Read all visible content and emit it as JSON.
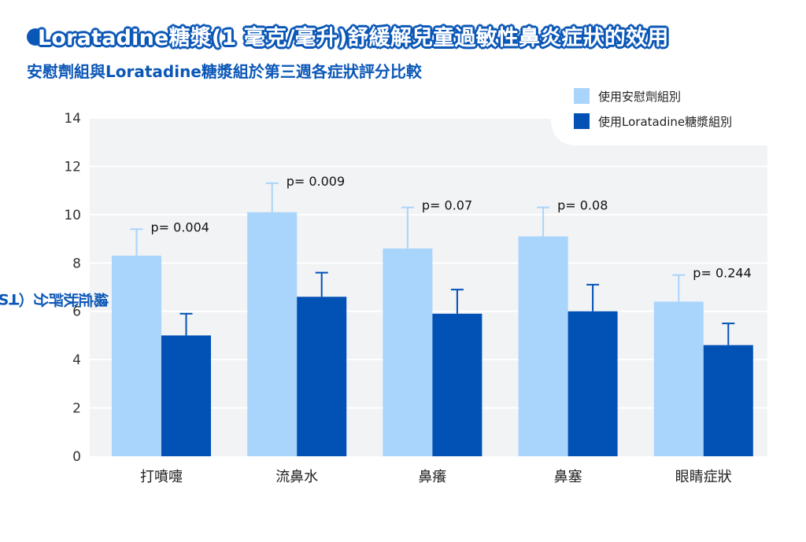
{
  "header": {
    "title": "Loratadine糖漿(1 毫克/毫升)舒緩解兒童過敏性鼻炎症狀的效用",
    "subtitle": "安慰劑組與Loratadine糖漿組於第三週各症狀評分比較"
  },
  "colors": {
    "placebo": "#a9d4fb",
    "loratadine": "#0251b5",
    "accent": "#0b57b7",
    "plot_bg": "#f1f3f5"
  },
  "chart_data": {
    "type": "bar",
    "title": "Loratadine糖漿(1 毫克/毫升)舒緩解兒童過敏性鼻炎症狀的效用",
    "subtitle": "安慰劑組與Loratadine糖漿組於第三週各症狀評分比較",
    "xlabel": "",
    "ylabel": "總症狀評分（TSS）",
    "ylim": [
      0,
      14
    ],
    "yticks": [
      0,
      2,
      4,
      6,
      8,
      10,
      12,
      14
    ],
    "grid": true,
    "legend_position": "top-right",
    "categories": [
      "打噴嚏",
      "流鼻水",
      "鼻癢",
      "鼻塞",
      "眼睛症狀"
    ],
    "series": [
      {
        "name": "使用安慰劑組別",
        "values": [
          8.3,
          10.1,
          8.6,
          9.1,
          6.4
        ],
        "error": [
          1.1,
          1.2,
          1.7,
          1.2,
          1.1
        ]
      },
      {
        "name": "使用Loratadine糖漿組別",
        "values": [
          5.0,
          6.6,
          5.9,
          6.0,
          4.6
        ],
        "error": [
          0.9,
          1.0,
          1.0,
          1.1,
          0.9
        ]
      }
    ],
    "annotations": [
      "p= 0.004",
      "p= 0.009",
      "p= 0.07",
      "p= 0.08",
      "p= 0.244"
    ]
  }
}
